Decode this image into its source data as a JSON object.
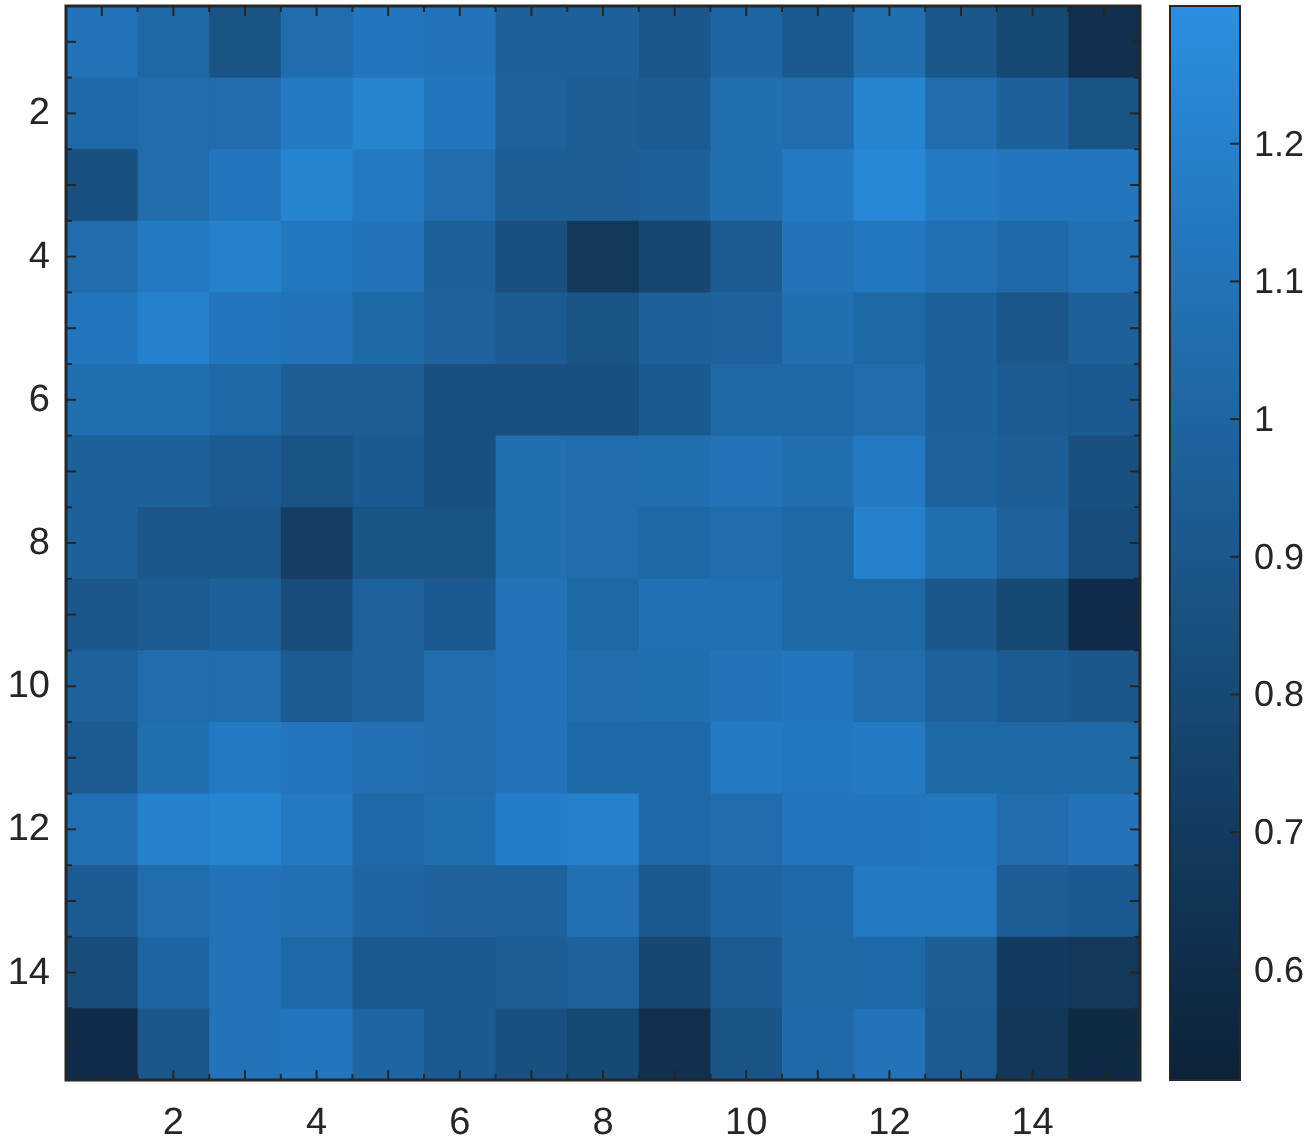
{
  "chart_data": {
    "type": "heatmap",
    "categories": [
      null,
      "2",
      null,
      "4",
      null,
      "6",
      null,
      "8",
      null,
      "10",
      null,
      "12",
      null,
      "14",
      null
    ],
    "y_categories": [
      null,
      "2",
      null,
      "4",
      null,
      "6",
      null,
      "8",
      null,
      "10",
      null,
      "12",
      null,
      "14",
      null
    ],
    "clim": [
      0.52,
      1.3
    ],
    "cticks": [
      0.6,
      0.7,
      0.8,
      0.9,
      1,
      1.1,
      1.2
    ],
    "cells": [
      [
        1.1,
        1.02,
        0.88,
        1.05,
        1.12,
        1.1,
        0.97,
        0.97,
        0.9,
        1.0,
        0.92,
        1.07,
        0.9,
        0.8,
        0.62
      ],
      [
        1.03,
        1.05,
        1.05,
        1.15,
        1.22,
        1.12,
        0.98,
        0.95,
        0.93,
        1.07,
        1.05,
        1.22,
        1.05,
        0.97,
        0.88
      ],
      [
        0.85,
        1.05,
        1.12,
        1.22,
        1.15,
        1.05,
        0.95,
        0.95,
        0.97,
        1.07,
        1.15,
        1.25,
        1.15,
        1.12,
        1.12
      ],
      [
        1.05,
        1.15,
        1.2,
        1.13,
        1.1,
        0.97,
        0.85,
        0.68,
        0.78,
        0.93,
        1.1,
        1.13,
        1.08,
        1.03,
        1.08
      ],
      [
        1.12,
        1.2,
        1.12,
        1.1,
        1.02,
        0.98,
        0.93,
        0.88,
        0.97,
        0.98,
        1.07,
        1.02,
        0.97,
        0.9,
        0.97
      ],
      [
        1.07,
        1.07,
        1.02,
        0.95,
        0.95,
        0.85,
        0.85,
        0.85,
        0.92,
        1.02,
        1.02,
        1.05,
        0.97,
        0.93,
        0.92
      ],
      [
        0.97,
        0.97,
        0.93,
        0.87,
        0.92,
        0.85,
        1.07,
        1.05,
        1.07,
        1.1,
        1.07,
        1.15,
        0.98,
        0.95,
        0.85
      ],
      [
        0.97,
        0.9,
        0.9,
        0.72,
        0.88,
        0.88,
        1.07,
        1.05,
        1.02,
        1.05,
        1.02,
        1.2,
        1.07,
        0.98,
        0.82
      ],
      [
        0.9,
        0.93,
        0.97,
        0.82,
        0.98,
        0.92,
        1.1,
        1.02,
        1.08,
        1.08,
        1.02,
        1.02,
        0.9,
        0.8,
        0.6
      ],
      [
        0.98,
        1.05,
        1.05,
        0.93,
        0.98,
        1.05,
        1.1,
        1.05,
        1.07,
        1.1,
        1.12,
        1.05,
        0.98,
        0.93,
        0.9
      ],
      [
        0.93,
        1.07,
        1.15,
        1.12,
        1.08,
        1.05,
        1.1,
        1.03,
        1.03,
        1.15,
        1.13,
        1.15,
        1.02,
        1.02,
        1.02
      ],
      [
        1.08,
        1.2,
        1.22,
        1.15,
        1.03,
        1.07,
        1.18,
        1.2,
        1.03,
        1.05,
        1.12,
        1.12,
        1.13,
        1.05,
        1.1
      ],
      [
        0.93,
        1.05,
        1.1,
        1.08,
        1.0,
        0.98,
        0.98,
        1.08,
        0.92,
        1.0,
        1.03,
        1.15,
        1.15,
        0.95,
        0.92
      ],
      [
        0.82,
        1.0,
        1.1,
        1.03,
        0.92,
        0.92,
        0.95,
        0.98,
        0.78,
        0.93,
        1.02,
        1.03,
        0.95,
        0.7,
        0.68
      ],
      [
        0.6,
        0.9,
        1.1,
        1.12,
        1.0,
        0.92,
        0.85,
        0.8,
        0.62,
        0.88,
        1.03,
        1.1,
        0.93,
        0.67,
        0.58
      ]
    ]
  }
}
